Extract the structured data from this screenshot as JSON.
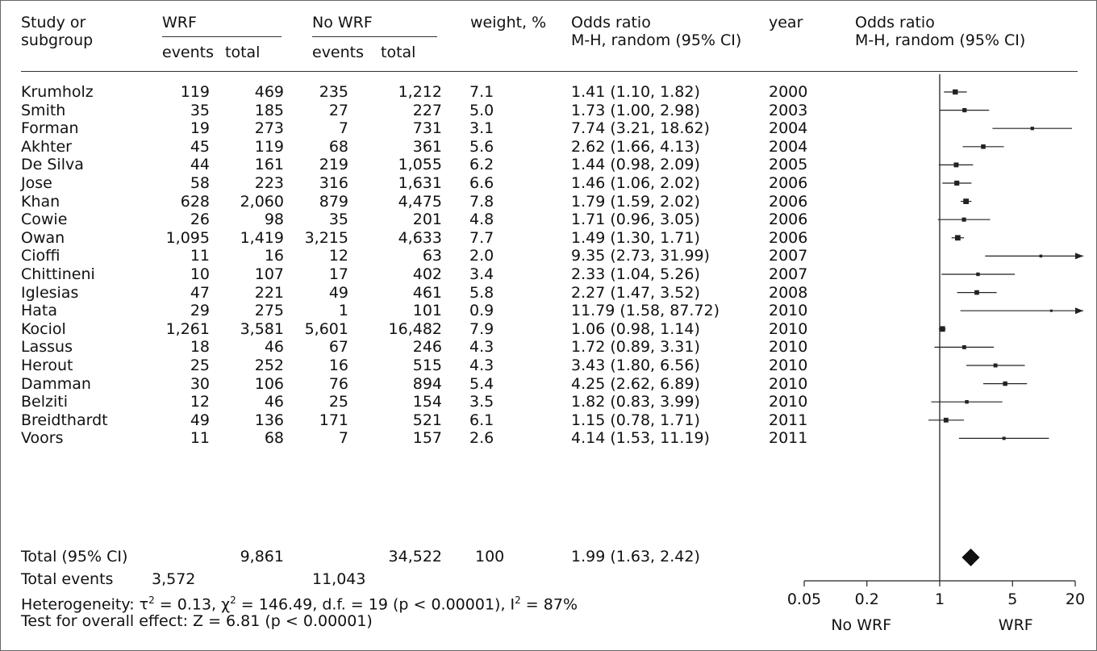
{
  "headers": {
    "study": [
      "Study or",
      "subgroup"
    ],
    "wrf": "WRF",
    "nowrf": "No WRF",
    "events": "events",
    "total": "total",
    "weight": "weight, %",
    "or_col": [
      "Odds ratio",
      "M-H, random (95% CI)"
    ],
    "year": "year",
    "or_plot": [
      "Odds ratio",
      "M-H, random (95% CI)"
    ]
  },
  "rows": [
    {
      "study": "Krumholz",
      "wrf_events": "119",
      "wrf_total": "469",
      "nowrf_events": "235",
      "nowrf_total": "1,212",
      "weight": "7.1",
      "or_text": "1.41 (1.10, 1.82)",
      "year": "2000"
    },
    {
      "study": "Smith",
      "wrf_events": "35",
      "wrf_total": "185",
      "nowrf_events": "27",
      "nowrf_total": "227",
      "weight": "5.0",
      "or_text": "1.73 (1.00, 2.98)",
      "year": "2003"
    },
    {
      "study": "Forman",
      "wrf_events": "19",
      "wrf_total": "273",
      "nowrf_events": "7",
      "nowrf_total": "731",
      "weight": "3.1",
      "or_text": "7.74 (3.21, 18.62)",
      "year": "2004"
    },
    {
      "study": "Akhter",
      "wrf_events": "45",
      "wrf_total": "119",
      "nowrf_events": "68",
      "nowrf_total": "361",
      "weight": "5.6",
      "or_text": "2.62 (1.66, 4.13)",
      "year": "2004"
    },
    {
      "study": "De Silva",
      "wrf_events": "44",
      "wrf_total": "161",
      "nowrf_events": "219",
      "nowrf_total": "1,055",
      "weight": "6.2",
      "or_text": "1.44 (0.98, 2.09)",
      "year": "2005"
    },
    {
      "study": "Jose",
      "wrf_events": "58",
      "wrf_total": "223",
      "nowrf_events": "316",
      "nowrf_total": "1,631",
      "weight": "6.6",
      "or_text": "1.46 (1.06, 2.02)",
      "year": "2006"
    },
    {
      "study": "Khan",
      "wrf_events": "628",
      "wrf_total": "2,060",
      "nowrf_events": "879",
      "nowrf_total": "4,475",
      "weight": "7.8",
      "or_text": "1.79 (1.59, 2.02)",
      "year": "2006"
    },
    {
      "study": "Cowie",
      "wrf_events": "26",
      "wrf_total": "98",
      "nowrf_events": "35",
      "nowrf_total": "201",
      "weight": "4.8",
      "or_text": "1.71 (0.96, 3.05)",
      "year": "2006"
    },
    {
      "study": "Owan",
      "wrf_events": "1,095",
      "wrf_total": "1,419",
      "nowrf_events": "3,215",
      "nowrf_total": "4,633",
      "weight": "7.7",
      "or_text": "1.49 (1.30, 1.71)",
      "year": "2006"
    },
    {
      "study": "Cioffi",
      "wrf_events": "11",
      "wrf_total": "16",
      "nowrf_events": "12",
      "nowrf_total": "63",
      "weight": "2.0",
      "or_text": "9.35 (2.73, 31.99)",
      "year": "2007"
    },
    {
      "study": "Chittineni",
      "wrf_events": "10",
      "wrf_total": "107",
      "nowrf_events": "17",
      "nowrf_total": "402",
      "weight": "3.4",
      "or_text": "2.33 (1.04, 5.26)",
      "year": "2007"
    },
    {
      "study": "Iglesias",
      "wrf_events": "47",
      "wrf_total": "221",
      "nowrf_events": "49",
      "nowrf_total": "461",
      "weight": "5.8",
      "or_text": "2.27 (1.47, 3.52)",
      "year": "2008"
    },
    {
      "study": "Hata",
      "wrf_events": "29",
      "wrf_total": "275",
      "nowrf_events": "1",
      "nowrf_total": "101",
      "weight": "0.9",
      "or_text": "11.79 (1.58, 87.72)",
      "year": "2010"
    },
    {
      "study": "Kociol",
      "wrf_events": "1,261",
      "wrf_total": "3,581",
      "nowrf_events": "5,601",
      "nowrf_total": "16,482",
      "weight": "7.9",
      "or_text": "1.06 (0.98, 1.14)",
      "year": "2010"
    },
    {
      "study": "Lassus",
      "wrf_events": "18",
      "wrf_total": "46",
      "nowrf_events": "67",
      "nowrf_total": "246",
      "weight": "4.3",
      "or_text": "1.72 (0.89, 3.31)",
      "year": "2010"
    },
    {
      "study": "Herout",
      "wrf_events": "25",
      "wrf_total": "252",
      "nowrf_events": "16",
      "nowrf_total": "515",
      "weight": "4.3",
      "or_text": "3.43 (1.80, 6.56)",
      "year": "2010"
    },
    {
      "study": "Damman",
      "wrf_events": "30",
      "wrf_total": "106",
      "nowrf_events": "76",
      "nowrf_total": "894",
      "weight": "5.4",
      "or_text": "4.25 (2.62, 6.89)",
      "year": "2010"
    },
    {
      "study": "Belziti",
      "wrf_events": "12",
      "wrf_total": "46",
      "nowrf_events": "25",
      "nowrf_total": "154",
      "weight": "3.5",
      "or_text": "1.82 (0.83, 3.99)",
      "year": "2010"
    },
    {
      "study": "Breidthardt",
      "wrf_events": "49",
      "wrf_total": "136",
      "nowrf_events": "171",
      "nowrf_total": "521",
      "weight": "6.1",
      "or_text": "1.15 (0.78, 1.71)",
      "year": "2011"
    },
    {
      "study": "Voors",
      "wrf_events": "11",
      "wrf_total": "68",
      "nowrf_events": "7",
      "nowrf_total": "157",
      "weight": "2.6",
      "or_text": "4.14 (1.53, 11.19)",
      "year": "2011"
    }
  ],
  "total": {
    "label": "Total (95% CI)",
    "wrf_total": "9,861",
    "nowrf_total": "34,522",
    "weight": "100",
    "or_text": "1.99 (1.63, 2.42)"
  },
  "total_events": {
    "label": "Total events",
    "wrf": "3,572",
    "nowrf": "11,043"
  },
  "heterogeneity": {
    "prefix": "Heterogeneity: ",
    "tau": "τ",
    "tau_exp": "2",
    "tau_rest": " = 0.13, ",
    "chi": "χ",
    "chi_exp": "2",
    "chi_rest": " = 146.49, d.f. = 19 (p < 0.00001), I",
    "i_exp": "2",
    "i_rest": " = 87%"
  },
  "overall_effect": "Test for overall effect: Z = 6.81 (p < 0.00001)",
  "axis": {
    "ticks": [
      "0.05",
      "0.2",
      "1",
      "5",
      "20"
    ],
    "left_label": "No WRF",
    "right_label": "WRF"
  },
  "chart_data": {
    "type": "scatter",
    "subtype": "forest-plot",
    "x_scale": "log",
    "xlim": [
      0.05,
      20
    ],
    "x_ticks": [
      0.05,
      0.2,
      1,
      5,
      20
    ],
    "reference_line": 1,
    "categories": [
      "Krumholz",
      "Smith",
      "Forman",
      "Akhter",
      "De Silva",
      "Jose",
      "Khan",
      "Cowie",
      "Owan",
      "Cioffi",
      "Chittineni",
      "Iglesias",
      "Hata",
      "Kociol",
      "Lassus",
      "Herout",
      "Damman",
      "Belziti",
      "Breidthardt",
      "Voors"
    ],
    "estimates": [
      1.41,
      1.73,
      7.74,
      2.62,
      1.44,
      1.46,
      1.79,
      1.71,
      1.49,
      9.35,
      2.33,
      2.27,
      11.79,
      1.06,
      1.72,
      3.43,
      4.25,
      1.82,
      1.15,
      4.14
    ],
    "ci_low": [
      1.1,
      1.0,
      3.21,
      1.66,
      0.98,
      1.06,
      1.59,
      0.96,
      1.3,
      2.73,
      1.04,
      1.47,
      1.58,
      0.98,
      0.89,
      1.8,
      2.62,
      0.83,
      0.78,
      1.53
    ],
    "ci_high": [
      1.82,
      2.98,
      18.62,
      4.13,
      2.09,
      2.02,
      2.02,
      3.05,
      1.71,
      31.99,
      5.26,
      3.52,
      87.72,
      1.14,
      3.31,
      6.56,
      6.89,
      3.99,
      1.71,
      11.19
    ],
    "weights": [
      7.1,
      5.0,
      3.1,
      5.6,
      6.2,
      6.6,
      7.8,
      4.8,
      7.7,
      2.0,
      3.4,
      5.8,
      0.9,
      7.9,
      4.3,
      4.3,
      5.4,
      3.5,
      6.1,
      2.6
    ],
    "pooled": {
      "estimate": 1.99,
      "ci_low": 1.63,
      "ci_high": 2.42
    }
  }
}
